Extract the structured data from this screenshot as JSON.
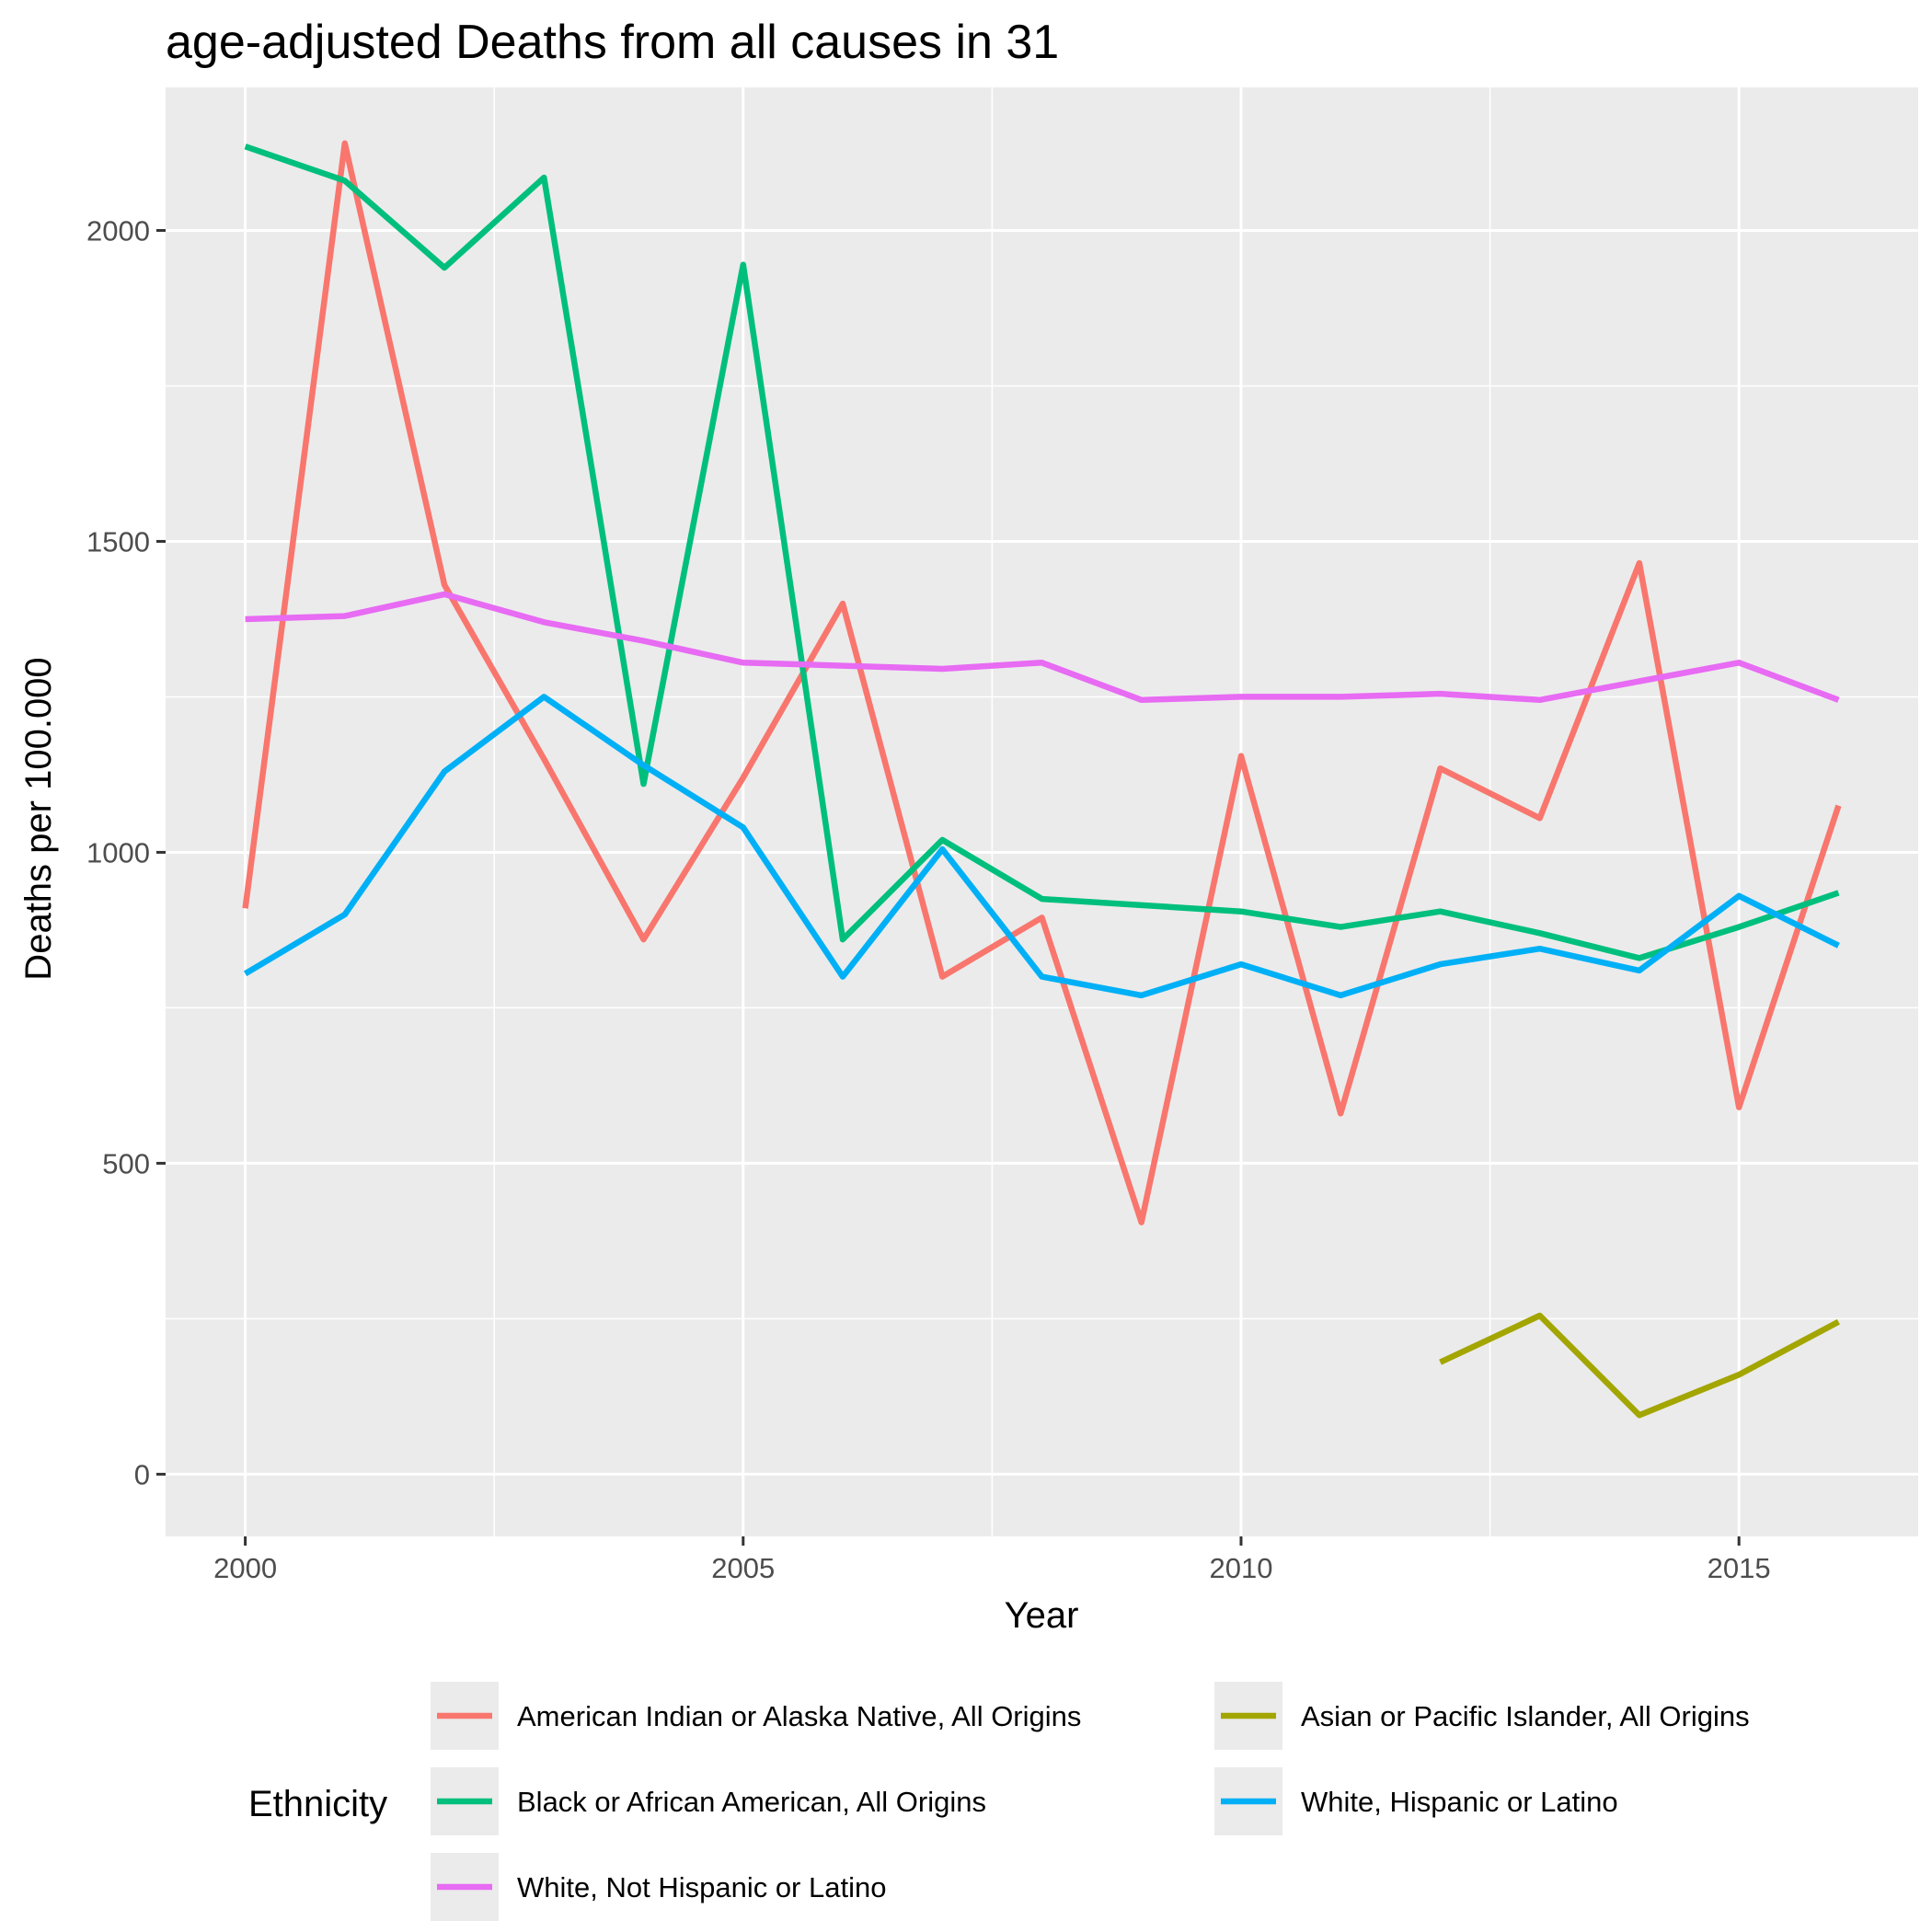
{
  "chart_data": {
    "type": "line",
    "title": "age-adjusted Deaths from all causes in 31",
    "xlabel": "Year",
    "ylabel": "Deaths per 100.000",
    "xlim": [
      1999.2,
      2016.8
    ],
    "ylim": [
      -100,
      2230
    ],
    "x_ticks": [
      2000,
      2005,
      2010,
      2015
    ],
    "y_ticks": [
      0,
      500,
      1000,
      1500,
      2000
    ],
    "grid": true,
    "legend_position": "bottom",
    "legend_title": "Ethnicity",
    "series": [
      {
        "name": "American Indian or Alaska Native, All Origins",
        "color": "#F8766D",
        "x": [
          2000,
          2001,
          2002,
          2003,
          2004,
          2005,
          2006,
          2007,
          2008,
          2009,
          2010,
          2011,
          2012,
          2013,
          2014,
          2015,
          2016
        ],
        "values": [
          910,
          2140,
          1430,
          1150,
          860,
          1120,
          1400,
          800,
          895,
          405,
          1155,
          580,
          1135,
          1055,
          1465,
          590,
          1075
        ]
      },
      {
        "name": "Asian or Pacific Islander, All Origins",
        "color": "#A3A500",
        "x": [
          2012,
          2013,
          2014,
          2015,
          2016
        ],
        "values": [
          180,
          255,
          95,
          160,
          245
        ]
      },
      {
        "name": "Black or African American, All Origins",
        "color": "#00BF7D",
        "x": [
          2000,
          2001,
          2002,
          2003,
          2004,
          2005,
          2006,
          2007,
          2008,
          2009,
          2010,
          2011,
          2012,
          2013,
          2014,
          2015,
          2016
        ],
        "values": [
          2135,
          2080,
          1940,
          2085,
          1110,
          1945,
          860,
          1020,
          925,
          915,
          905,
          880,
          905,
          870,
          830,
          880,
          935
        ]
      },
      {
        "name": "White, Hispanic or Latino",
        "color": "#00B0F6",
        "x": [
          2000,
          2001,
          2002,
          2003,
          2004,
          2005,
          2006,
          2007,
          2008,
          2009,
          2010,
          2011,
          2012,
          2013,
          2014,
          2015,
          2016
        ],
        "values": [
          805,
          900,
          1130,
          1250,
          1140,
          1040,
          800,
          1005,
          800,
          770,
          820,
          770,
          820,
          845,
          810,
          930,
          850
        ]
      },
      {
        "name": "White, Not Hispanic or Latino",
        "color": "#E76BF3",
        "x": [
          2000,
          2001,
          2002,
          2003,
          2004,
          2005,
          2006,
          2007,
          2008,
          2009,
          2010,
          2011,
          2012,
          2013,
          2014,
          2015,
          2016
        ],
        "values": [
          1375,
          1380,
          1415,
          1370,
          1340,
          1305,
          1300,
          1295,
          1305,
          1245,
          1250,
          1250,
          1255,
          1245,
          1275,
          1305,
          1245
        ]
      }
    ]
  }
}
